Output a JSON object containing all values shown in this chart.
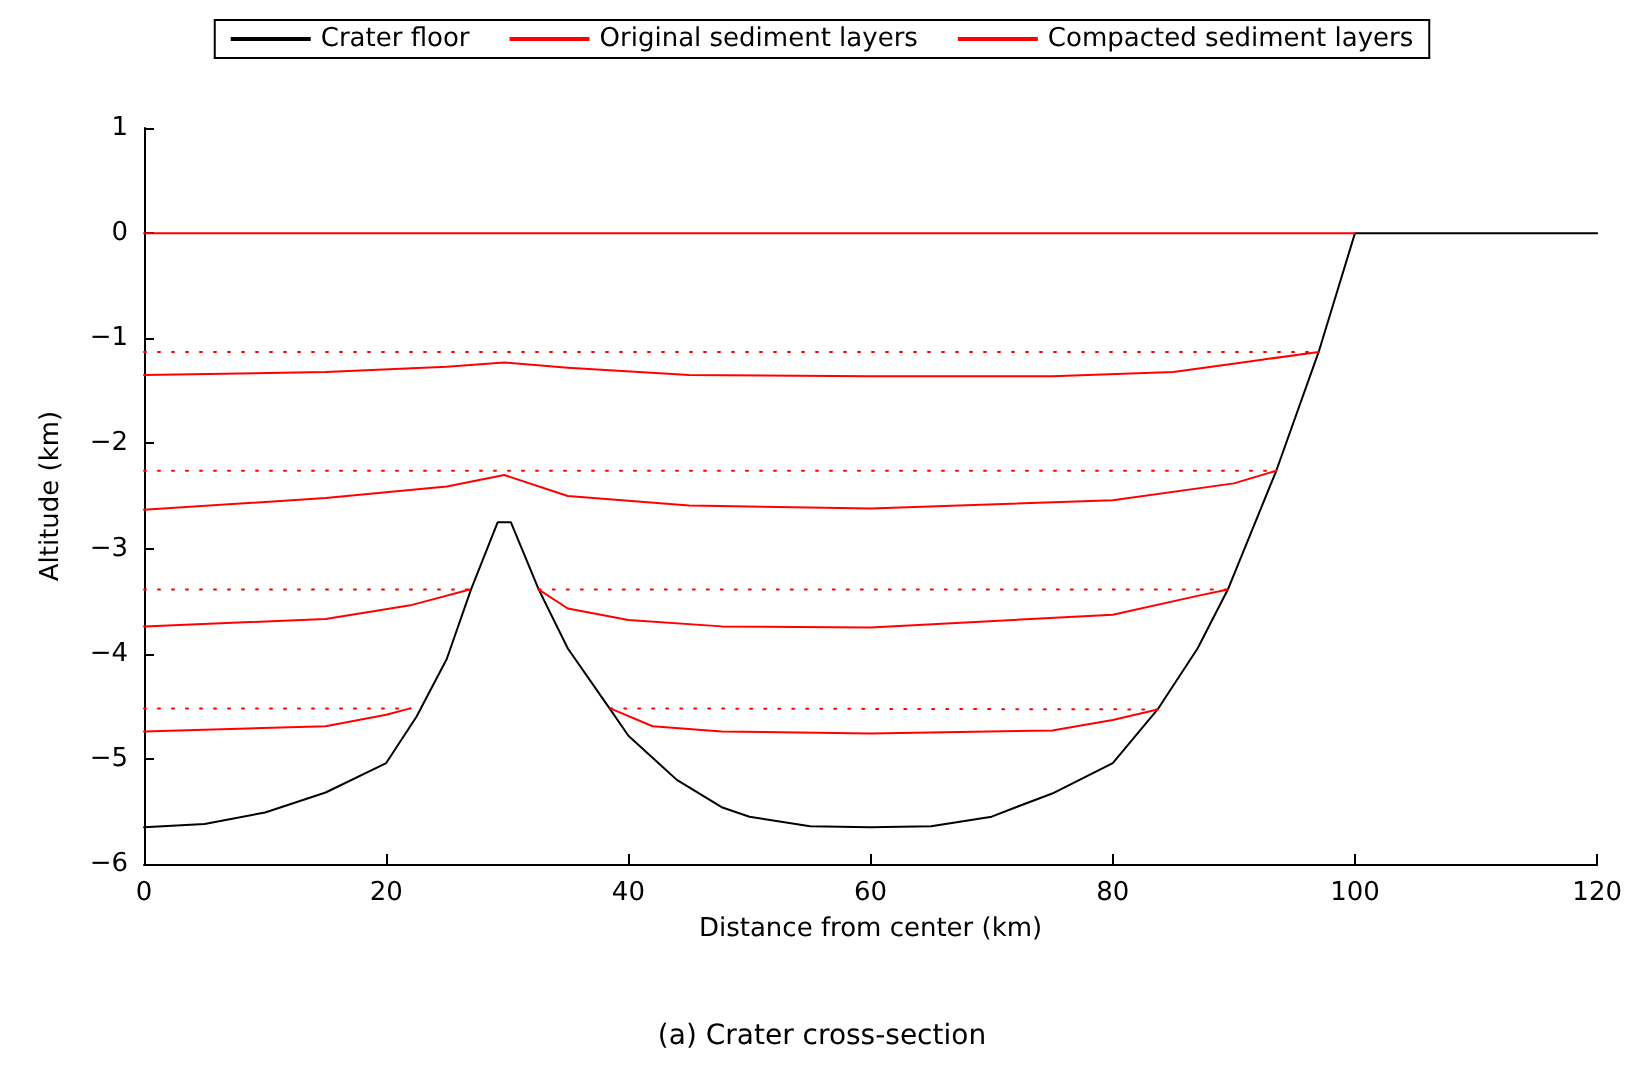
{
  "chart_data": {
    "type": "line",
    "xlabel": "Distance from center (km)",
    "ylabel": "Altitude (km)",
    "annotations": [
      "(a) Crater cross-section"
    ],
    "xlim": [
      0,
      120
    ],
    "xticks": [
      0,
      20,
      40,
      60,
      80,
      100,
      120
    ],
    "ylim": [
      -6,
      1
    ],
    "yticks": [
      -6,
      -5,
      -4,
      -3,
      -2,
      -1,
      0,
      1
    ],
    "grid": false,
    "legend": "top",
    "marker": "none",
    "series": [
      {
        "name": "Crater floor",
        "color": "#000000",
        "line_style": "solid",
        "x": [
          0,
          5,
          10,
          15,
          20,
          22.5,
          25,
          27,
          29.2,
          30.3,
          32.6,
          35,
          38.5,
          40,
          44,
          47.7,
          50,
          55,
          60,
          65,
          70,
          72,
          75,
          80,
          83.7,
          87,
          89.5,
          93.5,
          97,
          100,
          110,
          120
        ],
        "values": [
          -5.65,
          -5.62,
          -5.51,
          -5.32,
          -5.04,
          -4.6,
          -4.05,
          -3.39,
          -2.75,
          -2.75,
          -3.39,
          -3.95,
          -4.53,
          -4.78,
          -5.2,
          -5.46,
          -5.55,
          -5.64,
          -5.65,
          -5.64,
          -5.55,
          -5.46,
          -5.33,
          -5.04,
          -4.53,
          -3.95,
          -3.39,
          -2.26,
          -1.13,
          0,
          0,
          0
        ]
      },
      {
        "name": "Original sediment layers",
        "color": "#ff0000",
        "line_style": "dotted",
        "x": [
          0,
          97,
          null,
          0,
          93.5,
          null,
          0,
          26.9,
          null,
          32.6,
          89.5,
          null,
          0,
          22,
          null,
          38.5,
          83.7
        ],
        "values": [
          -1.13,
          -1.13,
          null,
          -2.26,
          -2.26,
          null,
          -3.39,
          -3.39,
          null,
          -3.39,
          -3.39,
          null,
          -4.52,
          -4.52,
          null,
          -4.52,
          -4.53
        ]
      },
      {
        "name": "Compacted sediment layers",
        "color": "#ff0000",
        "line_style": "solid",
        "x": [
          0,
          100,
          null,
          0,
          15,
          25,
          29.75,
          35,
          45,
          60,
          75,
          85,
          91.3,
          97,
          null,
          0,
          15,
          25,
          29.75,
          35,
          45,
          60,
          80,
          90,
          93.5,
          null,
          0,
          15,
          22,
          26.9,
          null,
          32.6,
          35,
          40,
          47.7,
          60,
          80,
          87,
          89.5,
          null,
          0,
          15,
          20,
          22,
          null,
          38.5,
          42,
          47.7,
          60,
          75,
          80,
          83.7
        ],
        "values": [
          0,
          0,
          null,
          -1.35,
          -1.32,
          -1.27,
          -1.23,
          -1.28,
          -1.35,
          -1.36,
          -1.36,
          -1.32,
          -1.22,
          -1.13,
          null,
          -2.63,
          -2.52,
          -2.41,
          -2.3,
          -2.5,
          -2.59,
          -2.62,
          -2.54,
          -2.38,
          -2.26,
          null,
          -3.74,
          -3.67,
          -3.54,
          -3.39,
          null,
          -3.39,
          -3.57,
          -3.68,
          -3.74,
          -3.75,
          -3.63,
          -3.45,
          -3.39,
          null,
          -4.74,
          -4.69,
          -4.58,
          -4.52,
          null,
          -4.52,
          -4.69,
          -4.74,
          -4.76,
          -4.73,
          -4.63,
          -4.53
        ]
      }
    ]
  }
}
